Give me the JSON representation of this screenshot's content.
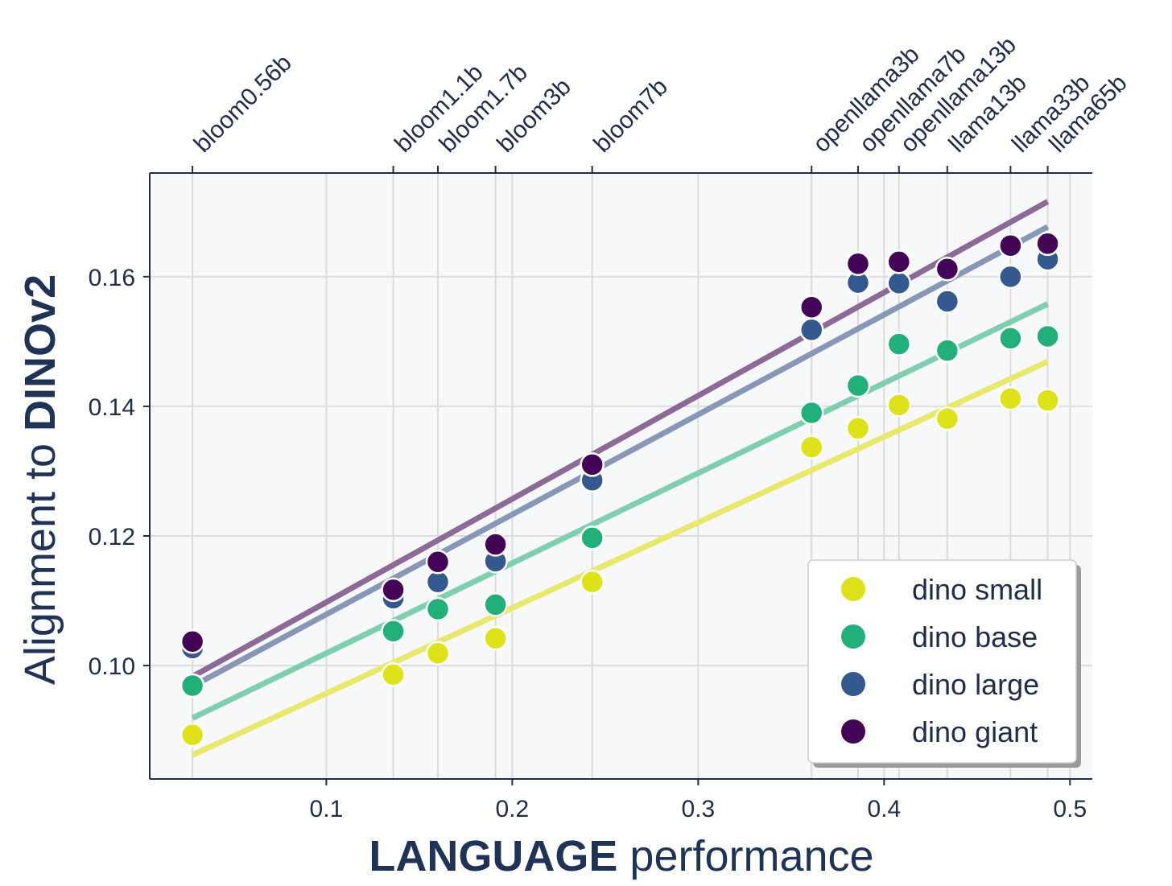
{
  "chart_data": {
    "type": "scatter",
    "xlabel_bold": "LANGUAGE",
    "xlabel_rest": " performance",
    "ylabel_rest": "Alignment to ",
    "ylabel_bold": "DINOv2",
    "xlim": [
      0.005,
      0.512
    ],
    "ylim": [
      0.0825,
      0.176
    ],
    "xticks": [
      0.1,
      0.2,
      0.3,
      0.4,
      0.5
    ],
    "xtick_labels": [
      "0.1",
      "0.2",
      "0.3",
      "0.4",
      "0.5"
    ],
    "yticks": [
      0.1,
      0.12,
      0.14,
      0.16
    ],
    "ytick_labels": [
      "0.10",
      "0.12",
      "0.14",
      "0.16"
    ],
    "grid": true,
    "legend_placement": "lower-right",
    "models": [
      {
        "name": "bloom0.56b",
        "x": 0.028
      },
      {
        "name": "bloom1.1b",
        "x": 0.136
      },
      {
        "name": "bloom1.7b",
        "x": 0.16
      },
      {
        "name": "bloom3b",
        "x": 0.191
      },
      {
        "name": "bloom7b",
        "x": 0.243
      },
      {
        "name": "openllama3b",
        "x": 0.361
      },
      {
        "name": "openllama7b",
        "x": 0.386
      },
      {
        "name": "openllama13b",
        "x": 0.408
      },
      {
        "name": "llama13b",
        "x": 0.434
      },
      {
        "name": "llama33b",
        "x": 0.468
      },
      {
        "name": "llama65b",
        "x": 0.488
      }
    ],
    "series": [
      {
        "name": "dino small",
        "color": "#dde318",
        "line_color": "#e8e86a",
        "values": [
          0.0893,
          0.0986,
          0.1019,
          0.1042,
          0.1129,
          0.1337,
          0.1366,
          0.1402,
          0.1381,
          0.1412,
          0.1409
        ],
        "fit": [
          0.0862,
          0.1469
        ]
      },
      {
        "name": "dino base",
        "color": "#21b07a",
        "line_color": "#7dcfae",
        "values": [
          0.0969,
          0.1053,
          0.1087,
          0.1094,
          0.1197,
          0.139,
          0.1432,
          0.1496,
          0.1486,
          0.1505,
          0.1508
        ],
        "fit": [
          0.0919,
          0.1558
        ]
      },
      {
        "name": "dino large",
        "color": "#33598e",
        "line_color": "#8797b8",
        "values": [
          0.1027,
          0.1104,
          0.1129,
          0.1161,
          0.1286,
          0.1518,
          0.1591,
          0.159,
          0.1562,
          0.16,
          0.1627
        ],
        "fit": [
          0.0968,
          0.1677
        ]
      },
      {
        "name": "dino giant",
        "color": "#440558",
        "line_color": "#8c6a98",
        "values": [
          0.1037,
          0.1117,
          0.116,
          0.1187,
          0.131,
          0.1553,
          0.162,
          0.1623,
          0.1612,
          0.1648,
          0.1651
        ],
        "fit": [
          0.0983,
          0.1716
        ]
      }
    ]
  }
}
